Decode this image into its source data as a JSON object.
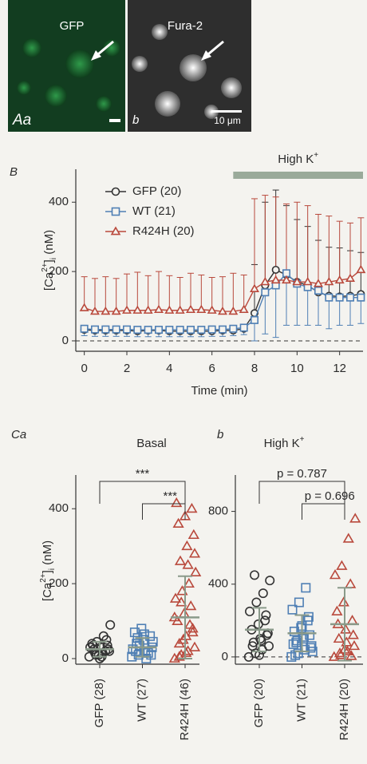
{
  "figure": {
    "images": [
      {
        "label": "GFP",
        "panel": "Aa"
      },
      {
        "label": "Fura-2",
        "panel": "b",
        "scale": "10 μm"
      }
    ]
  },
  "chart_data": [
    {
      "type": "line",
      "panel": "B",
      "annotation": [
        "High K",
        "+"
      ],
      "annotation_range": [
        7,
        13.1
      ],
      "annotation_color": "#9aaa9a",
      "xlabel": "Time (min)",
      "ylabel": [
        "[Ca",
        "2+",
        "]",
        "i",
        " (nM)"
      ],
      "xlim": [
        -0.4,
        13.1
      ],
      "ylim": [
        -30,
        495
      ],
      "xticks": [
        0,
        2,
        4,
        6,
        8,
        10,
        12
      ],
      "yticks": [
        0,
        200,
        400
      ],
      "zero_line": "dashed",
      "x": [
        0,
        0.5,
        1,
        1.5,
        2,
        2.5,
        3,
        3.5,
        4,
        4.5,
        5,
        5.5,
        6,
        6.5,
        7,
        7.5,
        8,
        8.5,
        9,
        9.5,
        10,
        10.5,
        11,
        11.5,
        12,
        12.5,
        13
      ],
      "series": [
        {
          "name": "GFP (20)",
          "color": "#333333",
          "marker": "circle",
          "error_direction": "up",
          "values": [
            32,
            30,
            30,
            30,
            30,
            28,
            30,
            30,
            28,
            28,
            28,
            28,
            28,
            30,
            30,
            35,
            80,
            160,
            205,
            190,
            170,
            160,
            140,
            130,
            128,
            130,
            135
          ],
          "errors": [
            10,
            10,
            10,
            10,
            10,
            10,
            10,
            10,
            10,
            10,
            10,
            10,
            10,
            10,
            10,
            10,
            140,
            240,
            230,
            200,
            180,
            170,
            150,
            140,
            140,
            130,
            120
          ]
        },
        {
          "name": "WT (21)",
          "color": "#4f7fb4",
          "marker": "square",
          "error_direction": "down",
          "values": [
            35,
            33,
            33,
            33,
            33,
            32,
            32,
            32,
            32,
            32,
            32,
            32,
            33,
            33,
            35,
            38,
            60,
            140,
            160,
            195,
            165,
            155,
            145,
            125,
            125,
            125,
            125
          ],
          "errors": [
            20,
            20,
            20,
            20,
            20,
            20,
            20,
            20,
            20,
            20,
            20,
            20,
            20,
            20,
            20,
            20,
            60,
            120,
            150,
            150,
            120,
            110,
            100,
            90,
            80,
            80,
            75
          ]
        },
        {
          "name": "R424H (20)",
          "color": "#b9493c",
          "marker": "triangle",
          "error_direction": "up",
          "values": [
            95,
            85,
            85,
            85,
            88,
            88,
            88,
            90,
            88,
            88,
            90,
            90,
            88,
            85,
            85,
            90,
            150,
            170,
            175,
            175,
            170,
            170,
            165,
            170,
            175,
            180,
            205
          ],
          "errors": [
            90,
            95,
            100,
            95,
            105,
            110,
            100,
            110,
            100,
            95,
            105,
            100,
            95,
            100,
            110,
            100,
            260,
            250,
            240,
            220,
            230,
            220,
            200,
            190,
            170,
            160,
            150
          ]
        }
      ]
    },
    {
      "type": "dotplot",
      "panel": "C",
      "subpanel": "a",
      "title": [
        "Basal"
      ],
      "ylabel": [
        "[Ca",
        "2+",
        "]",
        "i",
        " (nM)"
      ],
      "ylim": [
        -15,
        490
      ],
      "yticks": [
        0,
        200,
        400
      ],
      "categories": [
        "GFP (28)",
        "WT (27)",
        "R424H (46)"
      ],
      "colors": [
        "#333333",
        "#4f7fb4",
        "#b9493c"
      ],
      "markers": [
        "circle",
        "square",
        "triangle"
      ],
      "summary_color": "#8a9a8a",
      "points": [
        [
          5,
          10,
          15,
          20,
          25,
          30,
          35,
          40,
          10,
          20,
          30,
          45,
          60,
          90,
          15,
          5,
          25,
          35,
          0,
          50
        ],
        [
          5,
          10,
          20,
          30,
          40,
          50,
          60,
          70,
          80,
          15,
          25,
          35,
          0,
          45,
          55,
          65,
          10,
          20
        ],
        [
          0,
          10,
          20,
          30,
          40,
          60,
          80,
          100,
          120,
          140,
          160,
          180,
          200,
          230,
          260,
          300,
          330,
          360,
          380,
          400,
          415,
          50,
          90,
          110,
          150,
          250,
          280,
          5,
          15,
          70
        ]
      ],
      "means": [
        25,
        30,
        110
      ],
      "sds": [
        20,
        25,
        110
      ],
      "annotations": [
        {
          "text": "***",
          "from": 0,
          "to": 2
        },
        {
          "text": "***",
          "from": 1,
          "to": 2
        }
      ]
    },
    {
      "type": "dotplot",
      "panel": "b",
      "title": [
        "High K",
        "+"
      ],
      "zero_line": "dashed",
      "ylim": [
        -40,
        1000
      ],
      "yticks": [
        0,
        400,
        800
      ],
      "categories": [
        "GFP (20)",
        "WT (21)",
        "R424H (20)"
      ],
      "colors": [
        "#333333",
        "#4f7fb4",
        "#b9493c"
      ],
      "markers": [
        "circle",
        "square",
        "triangle"
      ],
      "summary_color": "#8a9a8a",
      "points": [
        [
          0,
          20,
          40,
          60,
          80,
          100,
          120,
          150,
          180,
          200,
          250,
          300,
          350,
          420,
          450,
          90,
          130,
          60,
          10,
          230
        ],
        [
          0,
          20,
          40,
          60,
          80,
          100,
          120,
          140,
          160,
          200,
          260,
          300,
          380,
          30,
          90,
          110,
          50,
          10,
          170,
          220,
          70
        ],
        [
          0,
          10,
          30,
          60,
          100,
          150,
          200,
          250,
          300,
          400,
          450,
          500,
          650,
          760,
          20,
          80,
          120,
          180,
          40,
          5
        ]
      ],
      "means": [
        150,
        130,
        180
      ],
      "sds": [
        120,
        100,
        200
      ],
      "annotations": [
        {
          "text": "p = 0.787",
          "from": 0,
          "to": 2
        },
        {
          "text": "p = 0.696",
          "from": 1,
          "to": 2
        }
      ]
    }
  ]
}
